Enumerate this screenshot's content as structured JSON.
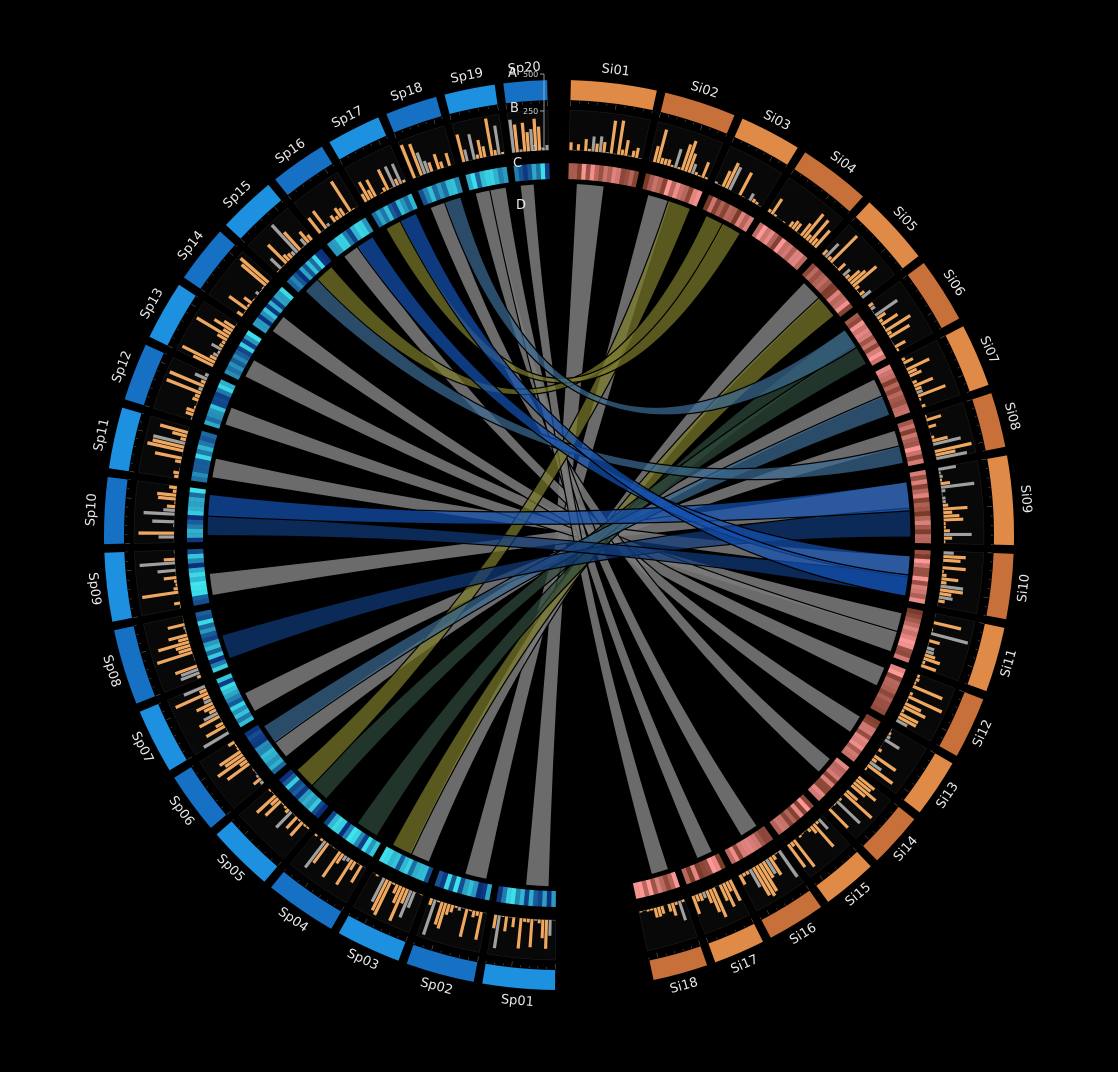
{
  "figure": {
    "track_labels": [
      "A",
      "B",
      "C",
      "D"
    ],
    "histogram_axis_ticks": [
      "500",
      "250",
      "0"
    ]
  },
  "colors": {
    "background": "#000000",
    "sp_ideogram": "#1e90e0",
    "sp_ideogram_alt": "#1670c4",
    "si_ideogram": "#e08a48",
    "si_ideogram_alt": "#c8703a",
    "histogram": "#f0a860",
    "histogram_gray": "#a0a0a0",
    "sp_heatmap_low": "#0b2a7a",
    "sp_heatmap_high": "#3fe8f0",
    "si_heatmap_low": "#7a3a28",
    "si_heatmap_high": "#ff9a9a",
    "link_gray": "#7a7a7a",
    "link_olive": "#7c7a2a",
    "link_darkgreen": "#2e4a3a",
    "link_navy": "#0f3a7a",
    "link_blue": "#1450b0",
    "link_steel": "#3a6a90"
  },
  "chart_data": {
    "type": "circos",
    "genomes": [
      {
        "name": "Sp",
        "chromosomes": [
          "Sp01",
          "Sp02",
          "Sp03",
          "Sp04",
          "Sp05",
          "Sp06",
          "Sp07",
          "Sp08",
          "Sp09",
          "Sp10",
          "Sp11",
          "Sp12",
          "Sp13",
          "Sp14",
          "Sp15",
          "Sp16",
          "Sp17",
          "Sp18",
          "Sp19",
          "Sp20"
        ]
      },
      {
        "name": "Si",
        "chromosomes": [
          "Si01",
          "Si02",
          "Si03",
          "Si04",
          "Si05",
          "Si06",
          "Si07",
          "Si08",
          "Si09",
          "Si10",
          "Si11",
          "Si12",
          "Si13",
          "Si14",
          "Si15",
          "Si16",
          "Si17",
          "Si18"
        ]
      }
    ],
    "tracks": [
      {
        "id": "A",
        "kind": "ideogram"
      },
      {
        "id": "B",
        "kind": "histogram",
        "range": [
          0,
          500
        ]
      },
      {
        "id": "C",
        "kind": "heatmap"
      },
      {
        "id": "D",
        "kind": "synteny_links"
      }
    ],
    "links": [
      {
        "from": "Sp01",
        "to": "Si01",
        "color": "gray"
      },
      {
        "from": "Sp02",
        "to": "Si02",
        "color": "gray"
      },
      {
        "from": "Sp03",
        "to": "Si05",
        "color": "gray"
      },
      {
        "from": "Sp03",
        "to": "Si05",
        "color": "olive"
      },
      {
        "from": "Sp04",
        "to": "Si06",
        "color": "darkgreen"
      },
      {
        "from": "Sp05",
        "to": "Si06",
        "color": "darkgreen"
      },
      {
        "from": "Sp05",
        "to": "Si02",
        "color": "olive"
      },
      {
        "from": "Sp06",
        "to": "Si07",
        "color": "gray"
      },
      {
        "from": "Sp06",
        "to": "Si07",
        "color": "steel"
      },
      {
        "from": "Sp07",
        "to": "Si08",
        "color": "gray"
      },
      {
        "from": "Sp08",
        "to": "Si09",
        "color": "navy"
      },
      {
        "from": "Sp09",
        "to": "Si09",
        "color": "gray"
      },
      {
        "from": "Sp10",
        "to": "Si10",
        "color": "navy"
      },
      {
        "from": "Sp10",
        "to": "Si09",
        "color": "blue"
      },
      {
        "from": "Sp11",
        "to": "Si10",
        "color": "gray"
      },
      {
        "from": "Sp12",
        "to": "Si11",
        "color": "gray"
      },
      {
        "from": "Sp13",
        "to": "Si11",
        "color": "gray"
      },
      {
        "from": "Sp14",
        "to": "Si12",
        "color": "gray"
      },
      {
        "from": "Sp15",
        "to": "Si08",
        "color": "steel"
      },
      {
        "from": "Sp15",
        "to": "Si03",
        "color": "olive"
      },
      {
        "from": "Sp16",
        "to": "Si13",
        "color": "gray"
      },
      {
        "from": "Sp16",
        "to": "Si10",
        "color": "blue"
      },
      {
        "from": "Sp17",
        "to": "Si03",
        "color": "olive"
      },
      {
        "from": "Sp17",
        "to": "Si10",
        "color": "blue"
      },
      {
        "from": "Sp18",
        "to": "Si14",
        "color": "gray"
      },
      {
        "from": "Sp18",
        "to": "Si06",
        "color": "steel"
      },
      {
        "from": "Sp19",
        "to": "Si16",
        "color": "gray"
      },
      {
        "from": "Sp19",
        "to": "Si17",
        "color": "gray"
      },
      {
        "from": "Sp20",
        "to": "Si18",
        "color": "gray"
      }
    ]
  }
}
